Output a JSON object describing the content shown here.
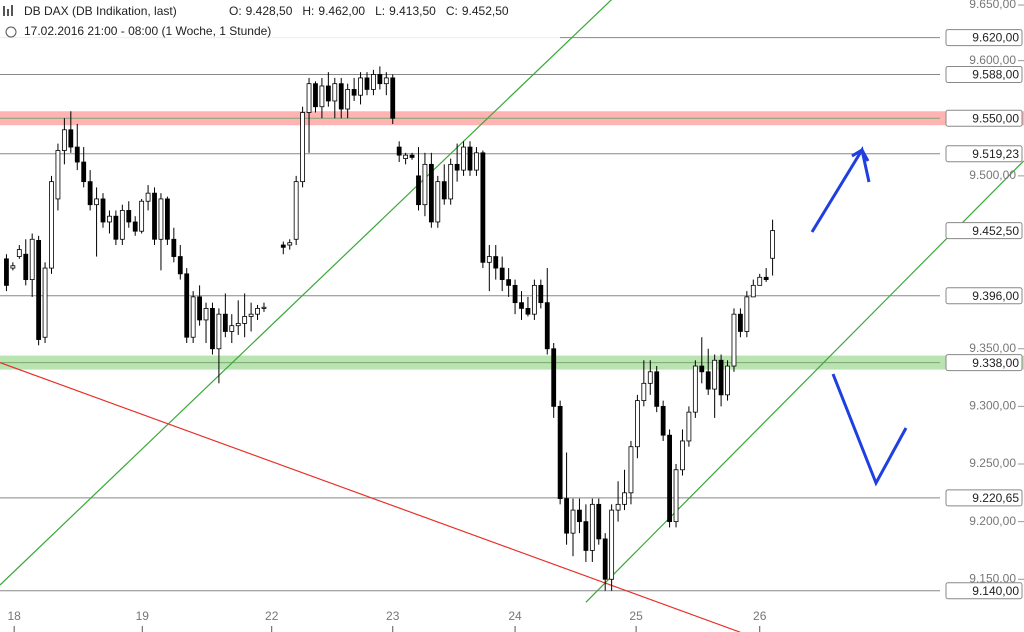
{
  "chart_data": {
    "type": "candlestick",
    "title": "DB DAX (DB Indikation, last)",
    "subtitle": "17.02.2016 21:00 - 08:00 (1 Woche, 1 Stunde)",
    "ohlc_labels": [
      {
        "name": "O:",
        "value": "9.428,50"
      },
      {
        "name": "H:",
        "value": "9.462,00"
      },
      {
        "name": "L:",
        "value": "9.413,50"
      },
      {
        "name": "C:",
        "value": "9.452,50"
      }
    ],
    "up_color": "#ffffff",
    "down_color": "#000000",
    "x": [
      1,
      2,
      3,
      4,
      5,
      6,
      7,
      8,
      9,
      10,
      11,
      12,
      13,
      14,
      15,
      16,
      17,
      18,
      19,
      20,
      21,
      22,
      23,
      24,
      25,
      26,
      27,
      28,
      29,
      30,
      31,
      32,
      33,
      34,
      35,
      36,
      37,
      38,
      39,
      40,
      41,
      44,
      45,
      46,
      47,
      48,
      49,
      50,
      51,
      52,
      53,
      54,
      55,
      56,
      57,
      58,
      59,
      60,
      61,
      62,
      63,
      64,
      65,
      66,
      67,
      68,
      69,
      70,
      71,
      72,
      73,
      74,
      75,
      76,
      77,
      78,
      79,
      80,
      81,
      82,
      83,
      84,
      85,
      86,
      87,
      88,
      89,
      90,
      91,
      92,
      93,
      94,
      95,
      96,
      97,
      98,
      99,
      100,
      101,
      102,
      103,
      104,
      105,
      106,
      107,
      108,
      109,
      110,
      111,
      112,
      113,
      114,
      115,
      116,
      117,
      118,
      119,
      120
    ],
    "candles": [
      [
        9428,
        9432,
        9400,
        9405
      ],
      [
        9420,
        9425,
        9418,
        9422
      ],
      [
        9430,
        9440,
        9428,
        9436
      ],
      [
        9432,
        9445,
        9405,
        9410
      ],
      [
        9410,
        9450,
        9395,
        9445
      ],
      [
        9444,
        9448,
        9353,
        9358
      ],
      [
        9360,
        9425,
        9355,
        9420
      ],
      [
        9420,
        9500,
        9415,
        9495
      ],
      [
        9480,
        9528,
        9470,
        9522
      ],
      [
        9522,
        9550,
        9510,
        9540
      ],
      [
        9540,
        9556,
        9520,
        9525
      ],
      [
        9525,
        9545,
        9505,
        9512
      ],
      [
        9512,
        9525,
        9490,
        9495
      ],
      [
        9495,
        9505,
        9470,
        9475
      ],
      [
        9475,
        9490,
        9430,
        9480
      ],
      [
        9480,
        9485,
        9455,
        9460
      ],
      [
        9460,
        9470,
        9450,
        9465
      ],
      [
        9465,
        9470,
        9440,
        9445
      ],
      [
        9445,
        9475,
        9440,
        9470
      ],
      [
        9470,
        9478,
        9455,
        9460
      ],
      [
        9460,
        9465,
        9448,
        9452
      ],
      [
        9452,
        9480,
        9450,
        9478
      ],
      [
        9478,
        9492,
        9470,
        9485
      ],
      [
        9485,
        9490,
        9440,
        9445
      ],
      [
        9445,
        9485,
        9418,
        9480
      ],
      [
        9480,
        9482,
        9440,
        9445
      ],
      [
        9445,
        9455,
        9425,
        9430
      ],
      [
        9430,
        9440,
        9410,
        9415
      ],
      [
        9415,
        9420,
        9355,
        9360
      ],
      [
        9360,
        9400,
        9355,
        9395
      ],
      [
        9395,
        9405,
        9370,
        9375
      ],
      [
        9375,
        9390,
        9355,
        9385
      ],
      [
        9385,
        9390,
        9345,
        9350
      ],
      [
        9350,
        9385,
        9320,
        9380
      ],
      [
        9380,
        9398,
        9360,
        9365
      ],
      [
        9365,
        9380,
        9355,
        9370
      ],
      [
        9370,
        9392,
        9362,
        9372
      ],
      [
        9372,
        9398,
        9360,
        9378
      ],
      [
        9378,
        9390,
        9365,
        9380
      ],
      [
        9380,
        9388,
        9375,
        9385
      ],
      [
        9385,
        9390,
        9382,
        9386
      ],
      [
        9440,
        9443,
        9432,
        9438
      ],
      [
        9440,
        9445,
        9436,
        9442
      ],
      [
        9445,
        9500,
        9440,
        9495
      ],
      [
        9495,
        9560,
        9490,
        9555
      ],
      [
        9555,
        9585,
        9520,
        9580
      ],
      [
        9580,
        9582,
        9555,
        9560
      ],
      [
        9560,
        9585,
        9550,
        9578
      ],
      [
        9578,
        9590,
        9560,
        9565
      ],
      [
        9565,
        9585,
        9550,
        9580
      ],
      [
        9580,
        9585,
        9550,
        9558
      ],
      [
        9558,
        9580,
        9550,
        9575
      ],
      [
        9575,
        9585,
        9565,
        9570
      ],
      [
        9570,
        9590,
        9562,
        9585
      ],
      [
        9585,
        9590,
        9570,
        9575
      ],
      [
        9575,
        9592,
        9570,
        9588
      ],
      [
        9588,
        9595,
        9575,
        9580
      ],
      [
        9580,
        9590,
        9570,
        9585
      ],
      [
        9585,
        9588,
        9545,
        9550
      ],
      [
        9525,
        9530,
        9512,
        9518
      ],
      [
        9515,
        9520,
        9510,
        9518
      ],
      [
        9518,
        9520,
        9514,
        9516
      ],
      [
        9500,
        9525,
        9470,
        9475
      ],
      [
        9475,
        9520,
        9465,
        9510
      ],
      [
        9510,
        9520,
        9455,
        9460
      ],
      [
        9460,
        9500,
        9455,
        9495
      ],
      [
        9495,
        9510,
        9475,
        9480
      ],
      [
        9480,
        9515,
        9475,
        9510
      ],
      [
        9510,
        9528,
        9495,
        9505
      ],
      [
        9505,
        9530,
        9500,
        9525
      ],
      [
        9525,
        9530,
        9500,
        9505
      ],
      [
        9505,
        9525,
        9500,
        9520
      ],
      [
        9520,
        9522,
        9420,
        9425
      ],
      [
        9425,
        9440,
        9400,
        9430
      ],
      [
        9430,
        9440,
        9410,
        9420
      ],
      [
        9420,
        9430,
        9400,
        9410
      ],
      [
        9410,
        9420,
        9395,
        9405
      ],
      [
        9405,
        9410,
        9380,
        9390
      ],
      [
        9390,
        9400,
        9375,
        9385
      ],
      [
        9385,
        9395,
        9378,
        9380
      ],
      [
        9380,
        9410,
        9375,
        9405
      ],
      [
        9405,
        9410,
        9385,
        9390
      ],
      [
        9390,
        9420,
        9345,
        9350
      ],
      [
        9350,
        9355,
        9290,
        9300
      ],
      [
        9300,
        9305,
        9215,
        9220
      ],
      [
        9220,
        9260,
        9180,
        9190
      ],
      [
        9190,
        9220,
        9170,
        9210
      ],
      [
        9210,
        9220,
        9190,
        9200
      ],
      [
        9200,
        9215,
        9165,
        9175
      ],
      [
        9175,
        9220,
        9165,
        9215
      ],
      [
        9215,
        9220,
        9180,
        9185
      ],
      [
        9185,
        9190,
        9140,
        9150
      ],
      [
        9150,
        9215,
        9140,
        9210
      ],
      [
        9210,
        9235,
        9200,
        9215
      ],
      [
        9215,
        9245,
        9210,
        9225
      ],
      [
        9225,
        9270,
        9215,
        9265
      ],
      [
        9265,
        9310,
        9255,
        9305
      ],
      [
        9305,
        9340,
        9300,
        9320
      ],
      [
        9320,
        9340,
        9310,
        9330
      ],
      [
        9330,
        9335,
        9295,
        9300
      ],
      [
        9300,
        9305,
        9270,
        9275
      ],
      [
        9275,
        9280,
        9195,
        9200
      ],
      [
        9200,
        9250,
        9195,
        9245
      ],
      [
        9245,
        9280,
        9240,
        9270
      ],
      [
        9270,
        9300,
        9265,
        9295
      ],
      [
        9295,
        9340,
        9290,
        9335
      ],
      [
        9335,
        9360,
        9320,
        9330
      ],
      [
        9330,
        9350,
        9310,
        9315
      ],
      [
        9315,
        9345,
        9290,
        9340
      ],
      [
        9340,
        9345,
        9300,
        9310
      ],
      [
        9310,
        9340,
        9305,
        9335
      ],
      [
        9335,
        9385,
        9330,
        9380
      ],
      [
        9380,
        9385,
        9360,
        9365
      ],
      [
        9365,
        9400,
        9360,
        9395
      ],
      [
        9395,
        9410,
        9395,
        9405
      ],
      [
        9405,
        9415,
        9405,
        9412
      ],
      [
        9412,
        9420,
        9408,
        9410
      ],
      [
        9428.5,
        9462,
        9413.5,
        9452.5
      ]
    ],
    "xlim": [
      0,
      146
    ],
    "xticks": [
      {
        "value": 2.2,
        "label": "18"
      },
      {
        "value": 22.1,
        "label": "19"
      },
      {
        "value": 42.2,
        "label": "22"
      },
      {
        "value": 61,
        "label": "23"
      },
      {
        "value": 80,
        "label": "24"
      },
      {
        "value": 98.8,
        "label": "25"
      },
      {
        "value": 118,
        "label": "26"
      }
    ],
    "ylim": [
      9132,
      9652.6
    ],
    "yticks": [
      {
        "value": 9650,
        "label": "9.650,00"
      },
      {
        "value": 9600,
        "label": "9.600,00"
      },
      {
        "value": 9500,
        "label": "9.500,00"
      },
      {
        "value": 9350,
        "label": "9.350,00"
      },
      {
        "value": 9300,
        "label": "9.300,00"
      },
      {
        "value": 9250,
        "label": "9.250,00"
      },
      {
        "value": 9200,
        "label": "9.200,00"
      },
      {
        "value": 9150,
        "label": "9.150,00"
      }
    ],
    "levels": [
      {
        "value": 9620,
        "label": "9.620,00",
        "style": "line",
        "color": "#888888"
      },
      {
        "value": 9588,
        "label": "9.588,00",
        "style": "line",
        "color": "#888888"
      },
      {
        "value": 9550,
        "label": "9.550,00",
        "style": "band",
        "color": "#ffb3b3"
      },
      {
        "value": 9519.23,
        "label": "9.519,23",
        "style": "line",
        "color": "#888888"
      },
      {
        "value": 9452.5,
        "label": "9.452,50",
        "style": "marker",
        "color": "#888888"
      },
      {
        "value": 9396,
        "label": "9.396,00",
        "style": "line",
        "color": "#888888"
      },
      {
        "value": 9338,
        "label": "9.338,00",
        "style": "band",
        "color": "#b9e3b0"
      },
      {
        "value": 9220.65,
        "label": "9.220,65",
        "style": "line",
        "color": "#888888"
      },
      {
        "value": 9140,
        "label": "9.140,00",
        "style": "line",
        "color": "#888888"
      }
    ],
    "trend_lines": [
      {
        "color": "#3aa83a",
        "x": [
          0,
          95
        ],
        "y": [
          9145,
          9653
        ]
      },
      {
        "color": "#3aa83a",
        "x": [
          91,
          159
        ],
        "y": [
          9130,
          9513
        ]
      },
      {
        "color": "#e8302a",
        "x": [
          0,
          115
        ],
        "y": [
          9338,
          9104
        ]
      }
    ]
  }
}
